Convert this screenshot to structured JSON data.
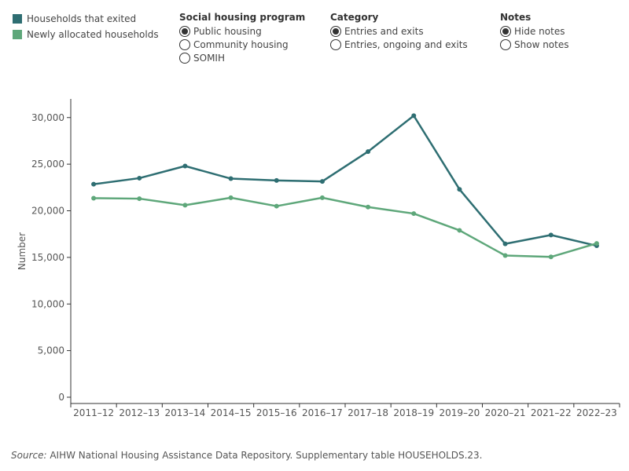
{
  "legend": {
    "items": [
      {
        "label": "Households that exited",
        "color": "#2e6e72"
      },
      {
        "label": "Newly allocated households",
        "color": "#5ea77a"
      }
    ]
  },
  "controls": {
    "program": {
      "title": "Social housing program",
      "options": [
        {
          "label": "Public housing",
          "checked": true
        },
        {
          "label": "Community housing",
          "checked": false
        },
        {
          "label": "SOMIH",
          "checked": false
        }
      ]
    },
    "category": {
      "title": "Category",
      "options": [
        {
          "label": "Entries and exits",
          "checked": true
        },
        {
          "label": "Entries, ongoing and exits",
          "checked": false
        }
      ]
    },
    "notes": {
      "title": "Notes",
      "options": [
        {
          "label": "Hide notes",
          "checked": true
        },
        {
          "label": "Show notes",
          "checked": false
        }
      ]
    }
  },
  "source": {
    "prefix": "Source:",
    "text": " AIHW National Housing Assistance Data Repository. Supplementary table HOUSEHOLDS.23."
  },
  "chart_data": {
    "type": "line",
    "categories": [
      "2011–12",
      "2012–13",
      "2013–14",
      "2014–15",
      "2015–16",
      "2016–17",
      "2017–18",
      "2018–19",
      "2019–20",
      "2020–21",
      "2021–22",
      "2022–23"
    ],
    "series": [
      {
        "name": "Households that exited",
        "color": "#2e6e72",
        "values": [
          22850,
          23500,
          24800,
          23450,
          23250,
          23150,
          26350,
          30200,
          22300,
          16450,
          17400,
          16250
        ]
      },
      {
        "name": "Newly allocated households",
        "color": "#5ea77a",
        "values": [
          21350,
          21300,
          20600,
          21400,
          20500,
          21400,
          20400,
          19700,
          17900,
          15200,
          15050,
          16500
        ]
      }
    ],
    "ylabel": "Number",
    "xlabel": "",
    "ylim": [
      0,
      32000
    ],
    "yticks": [
      0,
      5000,
      10000,
      15000,
      20000,
      25000,
      30000
    ],
    "ytick_labels": [
      "0",
      "5,000",
      "10,000",
      "15,000",
      "20,000",
      "25,000",
      "30,000"
    ],
    "grid": false,
    "legend_position": "top-left"
  }
}
